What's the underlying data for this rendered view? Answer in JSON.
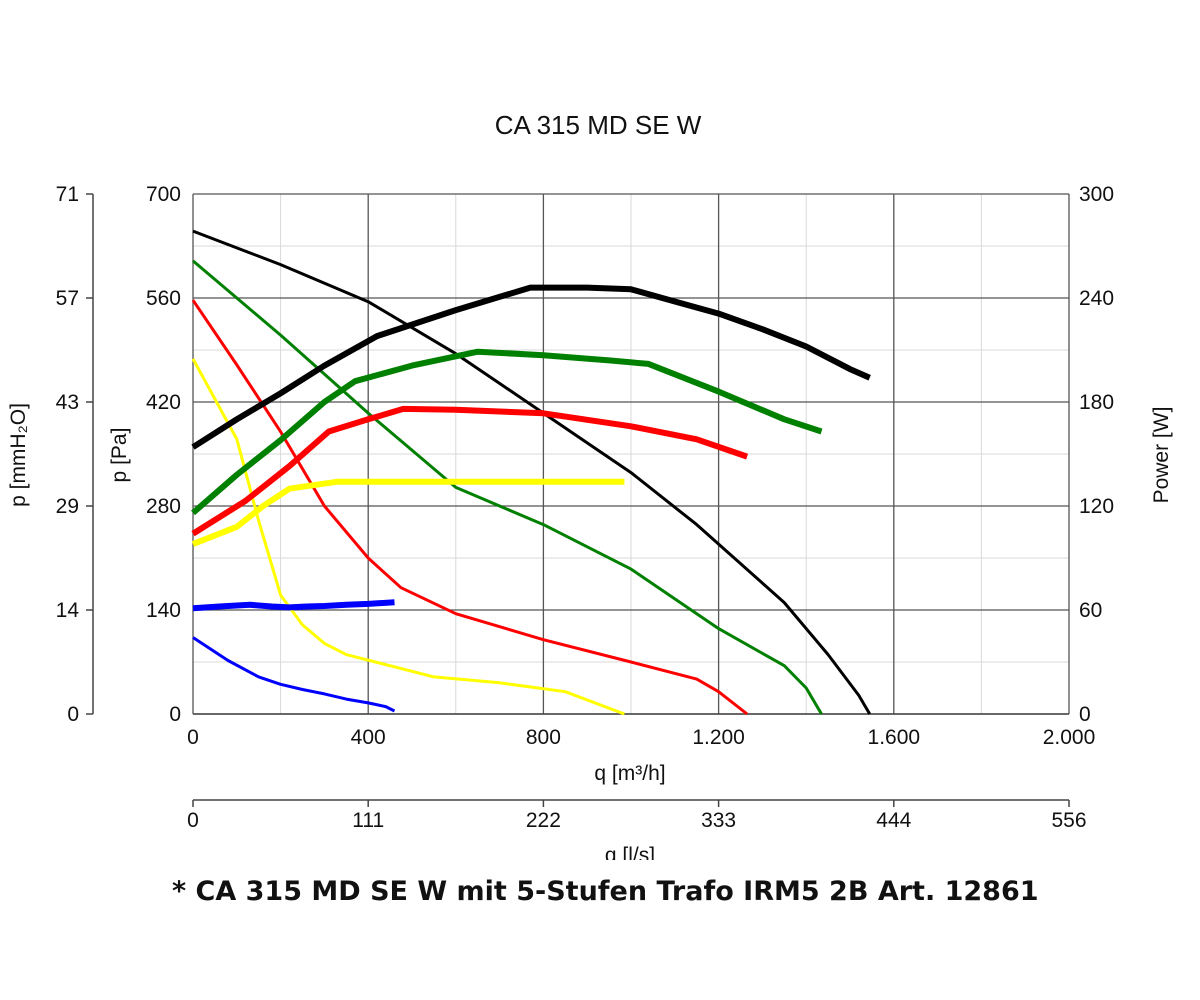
{
  "footnote": "* CA 315 MD SE W mit 5-Stufen Trafo IRM5 2B Art. 12861",
  "chart_data": {
    "type": "line",
    "title": "CA 315 MD SE W",
    "xlabel": "q [m³/h]",
    "xlim": [
      0,
      2000
    ],
    "xticks": [
      0,
      400,
      800,
      1200,
      1600,
      2000
    ],
    "xtick_labels": [
      "0",
      "400",
      "800",
      "1.200",
      "1.600",
      "2.000"
    ],
    "ylabel": "p [Pa]",
    "ylim": [
      0,
      700
    ],
    "yticks": [
      0,
      140,
      280,
      420,
      560,
      700
    ],
    "ytick_labels": [
      "0",
      "140",
      "280",
      "420",
      "560",
      "700"
    ],
    "y_mmh2o_axis": {
      "label": "p [mmH₂O]",
      "tick_labels": [
        "0",
        "14",
        "29",
        "43",
        "57",
        "71"
      ],
      "tick_values_pa": [
        0,
        140,
        280,
        420,
        560,
        700
      ]
    },
    "y2label": "Power [W]",
    "y2lim": [
      0,
      300
    ],
    "y2ticks": [
      0,
      60,
      120,
      180,
      240,
      300
    ],
    "y2tick_labels": [
      "0",
      "60",
      "120",
      "180",
      "240",
      "300"
    ],
    "x2_ls_axis": {
      "label": "q [l/s]",
      "tick_labels": [
        "0",
        "111",
        "222",
        "333",
        "444",
        "556"
      ],
      "tick_values_m3h": [
        0,
        400,
        800,
        1200,
        1600,
        2000
      ]
    },
    "grid": true,
    "series": [
      {
        "name": "stage-1-pressure",
        "color": "#0000ff",
        "axis": "pressure",
        "width": 3,
        "x": [
          0,
          80,
          150,
          200,
          250,
          300,
          350,
          400,
          440,
          460
        ],
        "y": [
          103,
          72,
          50,
          40,
          33,
          27,
          20,
          15,
          10,
          4
        ]
      },
      {
        "name": "stage-2-pressure",
        "color": "#ffff00",
        "axis": "pressure",
        "width": 3,
        "x": [
          0,
          100,
          150,
          200,
          250,
          300,
          350,
          450,
          550,
          700,
          850,
          985
        ],
        "y": [
          478,
          370,
          260,
          160,
          120,
          95,
          80,
          65,
          50,
          42,
          30,
          0
        ]
      },
      {
        "name": "stage-3-pressure",
        "color": "#ff0000",
        "axis": "pressure",
        "width": 3,
        "x": [
          0,
          100,
          200,
          300,
          400,
          475,
          600,
          800,
          1000,
          1150,
          1200,
          1265
        ],
        "y": [
          557,
          470,
          380,
          280,
          210,
          170,
          135,
          100,
          70,
          47,
          30,
          0
        ]
      },
      {
        "name": "stage-4-pressure",
        "color": "#008000",
        "axis": "pressure",
        "width": 3,
        "x": [
          0,
          200,
          400,
          600,
          800,
          1000,
          1200,
          1350,
          1400,
          1435
        ],
        "y": [
          610,
          510,
          405,
          305,
          255,
          195,
          115,
          65,
          35,
          0
        ]
      },
      {
        "name": "stage-5-pressure",
        "color": "#000000",
        "axis": "pressure",
        "width": 3,
        "x": [
          0,
          200,
          400,
          600,
          800,
          1000,
          1150,
          1350,
          1450,
          1520,
          1545
        ],
        "y": [
          650,
          605,
          555,
          485,
          405,
          325,
          255,
          150,
          80,
          25,
          0
        ]
      },
      {
        "name": "stage-1-power",
        "color": "#0000ff",
        "axis": "power",
        "width": 6,
        "x": [
          0,
          60,
          130,
          180,
          220,
          260,
          300,
          350,
          400,
          460
        ],
        "y": [
          61,
          62,
          63,
          62,
          61.5,
          62,
          62.3,
          63,
          63.5,
          64.5
        ]
      },
      {
        "name": "stage-2-power",
        "color": "#ffff00",
        "axis": "power",
        "width": 6,
        "x": [
          0,
          100,
          160,
          220,
          330,
          500,
          700,
          900,
          985
        ],
        "y": [
          98,
          108,
          120,
          130,
          134,
          134,
          134,
          134,
          134
        ]
      },
      {
        "name": "stage-3-power",
        "color": "#ff0000",
        "axis": "power",
        "width": 6,
        "x": [
          0,
          120,
          220,
          310,
          400,
          480,
          600,
          800,
          1000,
          1150,
          1265
        ],
        "y": [
          104,
          123,
          143,
          163,
          170,
          176,
          175.5,
          173.5,
          166,
          158.5,
          148.5
        ]
      },
      {
        "name": "stage-4-power",
        "color": "#008000",
        "axis": "power",
        "width": 6,
        "x": [
          0,
          100,
          200,
          300,
          370,
          500,
          650,
          800,
          950,
          1040,
          1200,
          1350,
          1435
        ],
        "y": [
          116,
          138,
          158,
          180,
          192,
          201,
          209,
          207,
          204,
          202,
          186,
          170,
          163
        ]
      },
      {
        "name": "stage-5-power",
        "color": "#000000",
        "axis": "power",
        "width": 6,
        "x": [
          0,
          100,
          200,
          300,
          420,
          600,
          770,
          900,
          1000,
          1100,
          1200,
          1300,
          1400,
          1500,
          1545
        ],
        "y": [
          154,
          170,
          185,
          201,
          218,
          233,
          246,
          246,
          245,
          238,
          231,
          222,
          212,
          199,
          194
        ]
      }
    ]
  }
}
